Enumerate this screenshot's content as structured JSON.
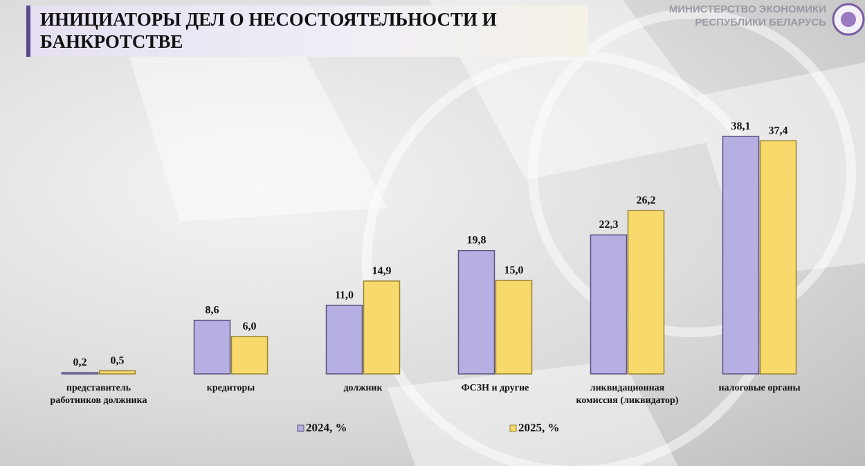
{
  "header": {
    "ministry_line1": "МИНИСТЕРСТВО ЭКОНОМИКИ",
    "ministry_line2": "РЕСПУБЛИКИ БЕЛАРУСЬ"
  },
  "chart_data": {
    "type": "bar",
    "title": "ИНИЦИАТОРЫ ДЕЛ О НЕСОСТОЯТЕЛЬНОСТИ И БАНКРОТСТВЕ",
    "categories": [
      "представитель работников должника",
      "кредиторы",
      "должник",
      "ФСЗН и другие",
      "ликвидационная комиссия (ликвидатор)",
      "налоговые органы"
    ],
    "series": [
      {
        "name": "2024, %",
        "color": "#b6afe2",
        "values": [
          0.2,
          8.6,
          11.0,
          19.8,
          22.3,
          38.1
        ],
        "value_labels": [
          "0,2",
          "8,6",
          "11,0",
          "19,8",
          "22,3",
          "38,1"
        ]
      },
      {
        "name": "2025, %",
        "color": "#f8d96c",
        "values": [
          0.5,
          6.0,
          14.9,
          15.0,
          26.2,
          37.4
        ],
        "value_labels": [
          "0,5",
          "6,0",
          "14,9",
          "15,0",
          "26,2",
          "37,4"
        ]
      }
    ]
  }
}
